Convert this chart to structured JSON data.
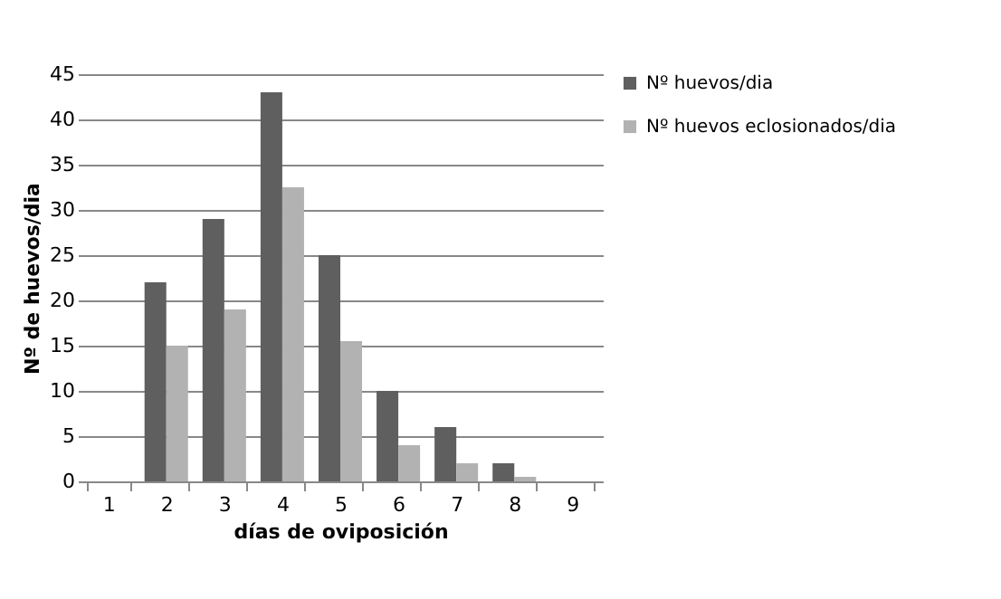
{
  "chart_data": {
    "type": "bar",
    "xlabel": "días de oviposición",
    "ylabel": "Nº de huevos/dia",
    "categories": [
      "1",
      "2",
      "3",
      "4",
      "5",
      "6",
      "7",
      "8",
      "9"
    ],
    "series": [
      {
        "name": "Nº huevos/dia",
        "color": "#5f5f5f",
        "values": [
          0,
          22,
          29,
          43,
          25,
          10,
          6,
          2,
          0
        ]
      },
      {
        "name": "Nº huevos eclosionados/dia",
        "color": "#b2b2b2",
        "values": [
          0,
          15,
          19,
          32.5,
          15.5,
          4,
          2,
          0.5,
          0
        ]
      }
    ],
    "ylim": [
      0,
      45
    ],
    "yticks": [
      0,
      5,
      10,
      15,
      20,
      25,
      30,
      35,
      40,
      45
    ],
    "grid": "y",
    "legend": "right"
  }
}
